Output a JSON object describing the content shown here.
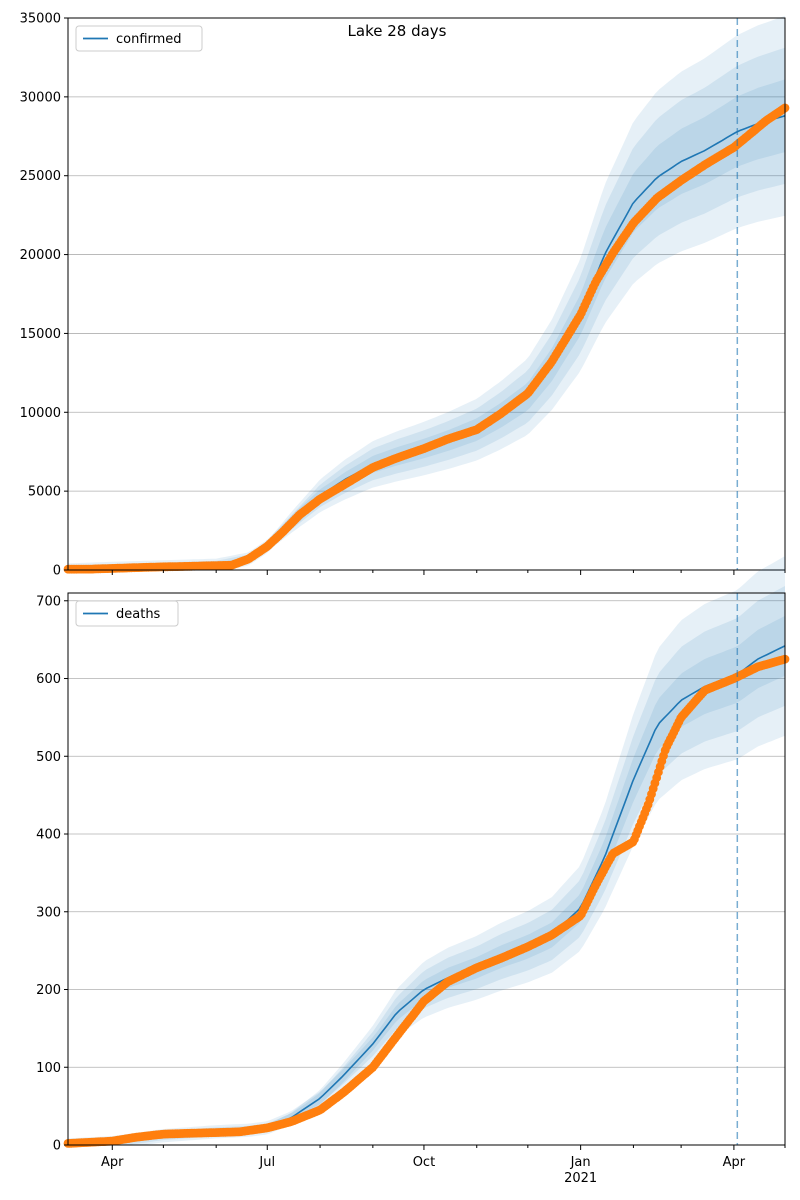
{
  "title": "Lake 28 days",
  "chart_data": [
    {
      "type": "line",
      "name": "confirmed-panel",
      "legend": "confirmed",
      "legend_position": "top-left",
      "grid": "horizontal",
      "ylim": [
        0,
        35000
      ],
      "yticks": [
        0,
        5000,
        10000,
        15000,
        20000,
        25000,
        30000,
        35000
      ],
      "forecast_start": "2021-04-03",
      "model": {
        "x": [
          "2020-03-06",
          "2020-04-01",
          "2020-05-01",
          "2020-06-01",
          "2020-06-20",
          "2020-07-01",
          "2020-07-15",
          "2020-08-01",
          "2020-08-15",
          "2020-09-01",
          "2020-09-15",
          "2020-10-01",
          "2020-10-15",
          "2020-11-01",
          "2020-11-15",
          "2020-12-01",
          "2020-12-15",
          "2021-01-01",
          "2021-01-15",
          "2021-02-01",
          "2021-02-15",
          "2021-03-01",
          "2021-03-15",
          "2021-04-03",
          "2021-04-15",
          "2021-05-01"
        ],
        "y": [
          0,
          100,
          200,
          300,
          700,
          1500,
          3000,
          4700,
          5700,
          6700,
          7200,
          7700,
          8200,
          8900,
          9800,
          11000,
          13000,
          16200,
          20000,
          23300,
          24900,
          25900,
          26600,
          27800,
          28300,
          28800
        ],
        "band_rel": [
          0.08,
          0.15,
          0.22
        ]
      },
      "observed": {
        "x": [
          "2020-03-06",
          "2020-03-20",
          "2020-04-01",
          "2020-04-15",
          "2020-05-01",
          "2020-05-15",
          "2020-06-01",
          "2020-06-10",
          "2020-06-20",
          "2020-07-01",
          "2020-07-10",
          "2020-07-20",
          "2020-08-01",
          "2020-08-15",
          "2020-09-01",
          "2020-09-15",
          "2020-10-01",
          "2020-10-15",
          "2020-11-01",
          "2020-11-15",
          "2020-12-01",
          "2020-12-15",
          "2021-01-01",
          "2021-01-10",
          "2021-01-20",
          "2021-02-01",
          "2021-02-15",
          "2021-03-01",
          "2021-03-15",
          "2021-04-01",
          "2021-04-10",
          "2021-04-20",
          "2021-05-01"
        ],
        "y": [
          50,
          60,
          100,
          150,
          200,
          230,
          280,
          300,
          700,
          1500,
          2400,
          3500,
          4500,
          5400,
          6500,
          7100,
          7700,
          8300,
          8900,
          9900,
          11200,
          13200,
          16200,
          18300,
          20100,
          22000,
          23600,
          24700,
          25700,
          26800,
          27600,
          28500,
          29300
        ]
      }
    },
    {
      "type": "line",
      "name": "deaths-panel",
      "legend": "deaths",
      "legend_position": "top-left",
      "grid": "horizontal",
      "ylim": [
        0,
        710
      ],
      "yticks": [
        0,
        100,
        200,
        300,
        400,
        500,
        600,
        700
      ],
      "forecast_start": "2021-04-03",
      "xticks": [
        "Apr",
        "Jul",
        "Oct",
        "Jan",
        "Apr"
      ],
      "xtick_dates": [
        "2020-04-01",
        "2020-07-01",
        "2020-10-01",
        "2021-01-01",
        "2021-04-01"
      ],
      "year_label": "2021",
      "model": {
        "x": [
          "2020-03-06",
          "2020-04-01",
          "2020-05-01",
          "2020-06-01",
          "2020-06-20",
          "2020-07-01",
          "2020-07-15",
          "2020-08-01",
          "2020-08-15",
          "2020-09-01",
          "2020-09-15",
          "2020-10-01",
          "2020-10-15",
          "2020-11-01",
          "2020-11-15",
          "2020-12-01",
          "2020-12-15",
          "2021-01-01",
          "2021-01-15",
          "2021-02-01",
          "2021-02-15",
          "2021-03-01",
          "2021-03-15",
          "2021-04-03",
          "2021-04-15",
          "2021-05-01"
        ],
        "y": [
          0,
          3,
          12,
          17,
          19,
          22,
          35,
          60,
          90,
          130,
          170,
          200,
          215,
          228,
          242,
          255,
          270,
          305,
          370,
          470,
          540,
          572,
          590,
          605,
          625,
          642
        ],
        "band_rel": [
          0.06,
          0.12,
          0.18
        ]
      },
      "observed": {
        "x": [
          "2020-03-06",
          "2020-04-01",
          "2020-04-15",
          "2020-05-01",
          "2020-05-15",
          "2020-06-01",
          "2020-06-15",
          "2020-07-01",
          "2020-07-15",
          "2020-08-01",
          "2020-08-15",
          "2020-09-01",
          "2020-09-15",
          "2020-10-01",
          "2020-10-15",
          "2020-11-01",
          "2020-11-15",
          "2020-12-01",
          "2020-12-15",
          "2021-01-01",
          "2021-01-10",
          "2021-01-20",
          "2021-02-01",
          "2021-02-10",
          "2021-02-20",
          "2021-03-01",
          "2021-03-15",
          "2021-04-01",
          "2021-04-15",
          "2021-05-01"
        ],
        "y": [
          2,
          5,
          10,
          14,
          15,
          16,
          17,
          22,
          30,
          45,
          68,
          100,
          140,
          185,
          210,
          228,
          240,
          255,
          270,
          295,
          335,
          375,
          390,
          440,
          510,
          550,
          585,
          600,
          615,
          625
        ]
      }
    }
  ]
}
